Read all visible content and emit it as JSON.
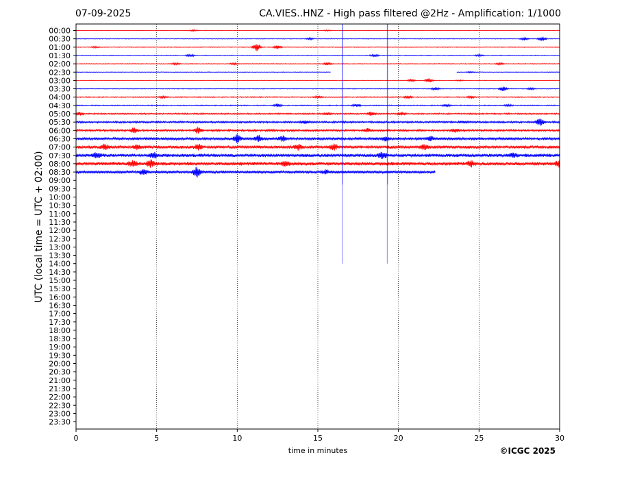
{
  "header": {
    "date": "07-09-2025",
    "title": "CA.VIES..HNZ - High pass filtered @2Hz - Amplification: 1/1000"
  },
  "footer": {
    "copyright": "©ICGC 2025"
  },
  "chart_data": {
    "type": "line",
    "ylabel": "UTC (local time = UTC + 02:00)",
    "xlabel": "time in minutes",
    "xlim": [
      0,
      30
    ],
    "x_ticks": [
      "0",
      "5",
      "10",
      "15",
      "20",
      "25",
      "30"
    ],
    "x_grid": "dotted vertical lines at 5-minute ticks",
    "colors": {
      "odd_trace": "#ff0000",
      "even_trace": "#0000ff"
    },
    "y_ticks": [
      "00:00",
      "00:30",
      "01:00",
      "01:30",
      "02:00",
      "02:30",
      "03:00",
      "03:30",
      "04:00",
      "04:30",
      "05:00",
      "05:30",
      "06:00",
      "06:30",
      "07:00",
      "07:30",
      "08:00",
      "08:30",
      "09:00",
      "09:30",
      "10:00",
      "10:30",
      "11:00",
      "11:30",
      "12:00",
      "12:30",
      "13:00",
      "13:30",
      "14:00",
      "14:30",
      "15:00",
      "15:30",
      "16:00",
      "16:30",
      "17:00",
      "17:30",
      "18:00",
      "18:30",
      "19:00",
      "19:30",
      "20:00",
      "20:30",
      "21:00",
      "21:30",
      "22:00",
      "22:30",
      "23:00",
      "23:30"
    ],
    "traces": [
      {
        "start": "00:00",
        "color": "#ff0000",
        "end_min": 30,
        "noise": 0.3,
        "bursts": [
          [
            7.3,
            1.2
          ],
          [
            15.6,
            0.8
          ]
        ]
      },
      {
        "start": "00:30",
        "color": "#0000ff",
        "end_min": 30,
        "noise": 0.4,
        "bursts": [
          [
            14.5,
            1.5
          ],
          [
            27.8,
            2.5
          ],
          [
            28.9,
            4
          ]
        ]
      },
      {
        "start": "01:00",
        "color": "#ff0000",
        "end_min": 30,
        "noise": 0.5,
        "bursts": [
          [
            1.2,
            1
          ],
          [
            11.2,
            6
          ],
          [
            12.5,
            3
          ]
        ]
      },
      {
        "start": "01:30",
        "color": "#0000ff",
        "end_min": 30,
        "noise": 0.5,
        "bursts": [
          [
            7.1,
            1.8
          ],
          [
            18.5,
            2
          ],
          [
            25,
            1.5
          ]
        ]
      },
      {
        "start": "02:00",
        "color": "#ff0000",
        "end_min": 30,
        "noise": 0.5,
        "bursts": [
          [
            6.2,
            1.5
          ],
          [
            9.8,
            1.5
          ],
          [
            15.6,
            2
          ],
          [
            26.3,
            1.5
          ]
        ]
      },
      {
        "start": "02:30",
        "color": "#0000ff",
        "end_min": 30,
        "noise": 0.4,
        "gap": [
          15.8,
          23.6
        ],
        "bursts": [
          [
            24.5,
            1
          ]
        ]
      },
      {
        "start": "03:00",
        "color": "#ff0000",
        "end_min": 30,
        "noise": 0.3,
        "bursts": [
          [
            20.8,
            2
          ],
          [
            21.9,
            3.5
          ],
          [
            23.8,
            1
          ]
        ]
      },
      {
        "start": "03:30",
        "color": "#0000ff",
        "end_min": 30,
        "noise": 0.5,
        "bursts": [
          [
            22.3,
            2.5
          ],
          [
            26.5,
            4
          ],
          [
            28.2,
            1.5
          ]
        ]
      },
      {
        "start": "04:00",
        "color": "#ff0000",
        "end_min": 30,
        "noise": 0.7,
        "bursts": [
          [
            5.4,
            1.5
          ],
          [
            15,
            1.5
          ],
          [
            20.6,
            2
          ],
          [
            24.5,
            2
          ]
        ]
      },
      {
        "start": "04:30",
        "color": "#0000ff",
        "end_min": 30,
        "noise": 0.7,
        "bursts": [
          [
            12.5,
            2.5
          ],
          [
            17.4,
            2
          ],
          [
            23,
            2
          ],
          [
            26.8,
            1.5
          ]
        ]
      },
      {
        "start": "05:00",
        "color": "#ff0000",
        "end_min": 30,
        "noise": 1.0,
        "bursts": [
          [
            0.2,
            3
          ],
          [
            15.6,
            2
          ],
          [
            18.3,
            3
          ],
          [
            20.2,
            2.5
          ]
        ]
      },
      {
        "start": "05:30",
        "color": "#0000ff",
        "end_min": 30,
        "noise": 1.3,
        "bursts": [
          [
            14.2,
            2
          ],
          [
            24,
            2
          ],
          [
            28.8,
            6
          ]
        ]
      },
      {
        "start": "06:00",
        "color": "#ff0000",
        "end_min": 30,
        "noise": 1.4,
        "bursts": [
          [
            3.6,
            4
          ],
          [
            7.6,
            5
          ],
          [
            18.1,
            2.5
          ],
          [
            23.5,
            2.5
          ]
        ]
      },
      {
        "start": "06:30",
        "color": "#0000ff",
        "end_min": 30,
        "noise": 1.9,
        "bursts": [
          [
            10,
            6
          ],
          [
            11.3,
            5
          ],
          [
            12.8,
            4
          ],
          [
            19.2,
            3
          ],
          [
            22,
            3
          ]
        ]
      },
      {
        "start": "07:00",
        "color": "#ff0000",
        "end_min": 30,
        "noise": 2.2,
        "bursts": [
          [
            1.8,
            4
          ],
          [
            3.8,
            3
          ],
          [
            7.6,
            4
          ],
          [
            13.8,
            4
          ],
          [
            16,
            4
          ],
          [
            21.6,
            4
          ]
        ]
      },
      {
        "start": "07:30",
        "color": "#0000ff",
        "end_min": 30,
        "noise": 2.4,
        "bursts": [
          [
            1.3,
            4
          ],
          [
            4.8,
            4
          ],
          [
            19,
            5
          ],
          [
            27.1,
            3
          ]
        ]
      },
      {
        "start": "08:00",
        "color": "#ff0000",
        "end_min": 30,
        "noise": 2.5,
        "bursts": [
          [
            3.5,
            4
          ],
          [
            4.6,
            5
          ],
          [
            13,
            3
          ],
          [
            24.5,
            4
          ],
          [
            30,
            5
          ]
        ]
      },
      {
        "start": "08:30",
        "color": "#0000ff",
        "end_min": 22.3,
        "noise": 2.0,
        "bursts": [
          [
            4.2,
            4
          ],
          [
            7.5,
            7
          ],
          [
            15.5,
            3
          ]
        ]
      }
    ],
    "spikes": [
      {
        "x_min": 16.5,
        "top_time": "00:00",
        "bottom_time": "14:00"
      },
      {
        "x_min": 19.3,
        "top_time": "00:00",
        "bottom_time": "14:00"
      }
    ]
  }
}
